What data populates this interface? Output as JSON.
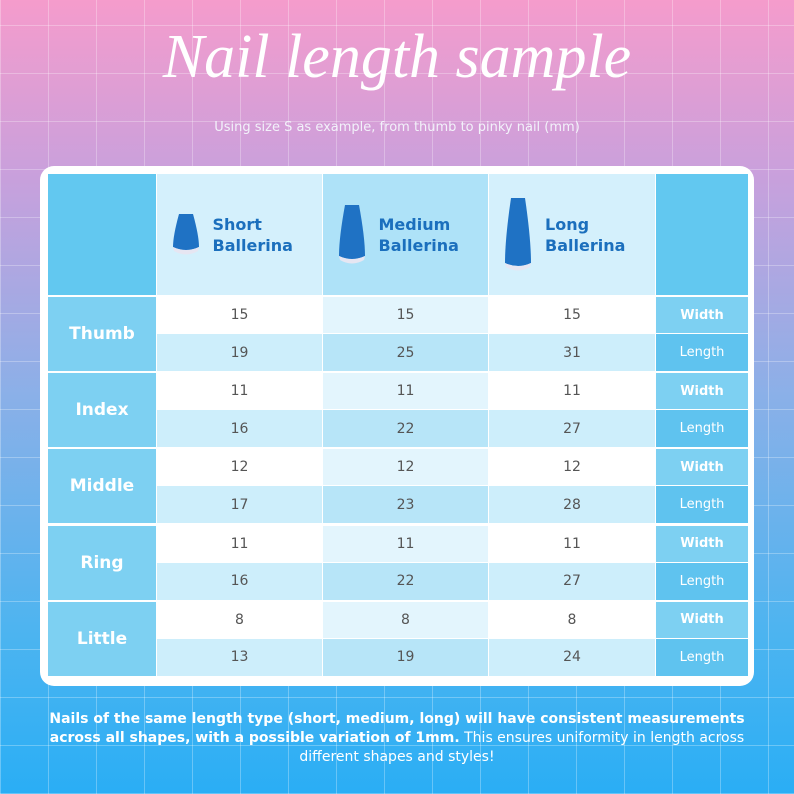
{
  "header": {
    "title": "Nail length sample",
    "subtitle": "Using size S as example, from thumb to pinky nail (mm)"
  },
  "table": {
    "columns": [
      "Short Ballerina",
      "Medium Ballerina",
      "Long Ballerina"
    ],
    "width_label": "Width",
    "length_label": "Length",
    "rows": [
      {
        "finger": "Thumb",
        "width": [
          15,
          15,
          15
        ],
        "length": [
          19,
          25,
          31
        ]
      },
      {
        "finger": "Index",
        "width": [
          11,
          11,
          11
        ],
        "length": [
          16,
          22,
          27
        ]
      },
      {
        "finger": "Middle",
        "width": [
          12,
          12,
          12
        ],
        "length": [
          17,
          23,
          28
        ]
      },
      {
        "finger": "Ring",
        "width": [
          11,
          11,
          11
        ],
        "length": [
          16,
          22,
          27
        ]
      },
      {
        "finger": "Little",
        "width": [
          8,
          8,
          8
        ],
        "length": [
          13,
          19,
          24
        ]
      }
    ]
  },
  "footer": {
    "bold": "Nails of the same length type (short, medium, long) will have consistent measurements across all shapes, with a possible variation of 1mm.",
    "normal": "This ensures uniformity in length across different shapes and styles!"
  }
}
